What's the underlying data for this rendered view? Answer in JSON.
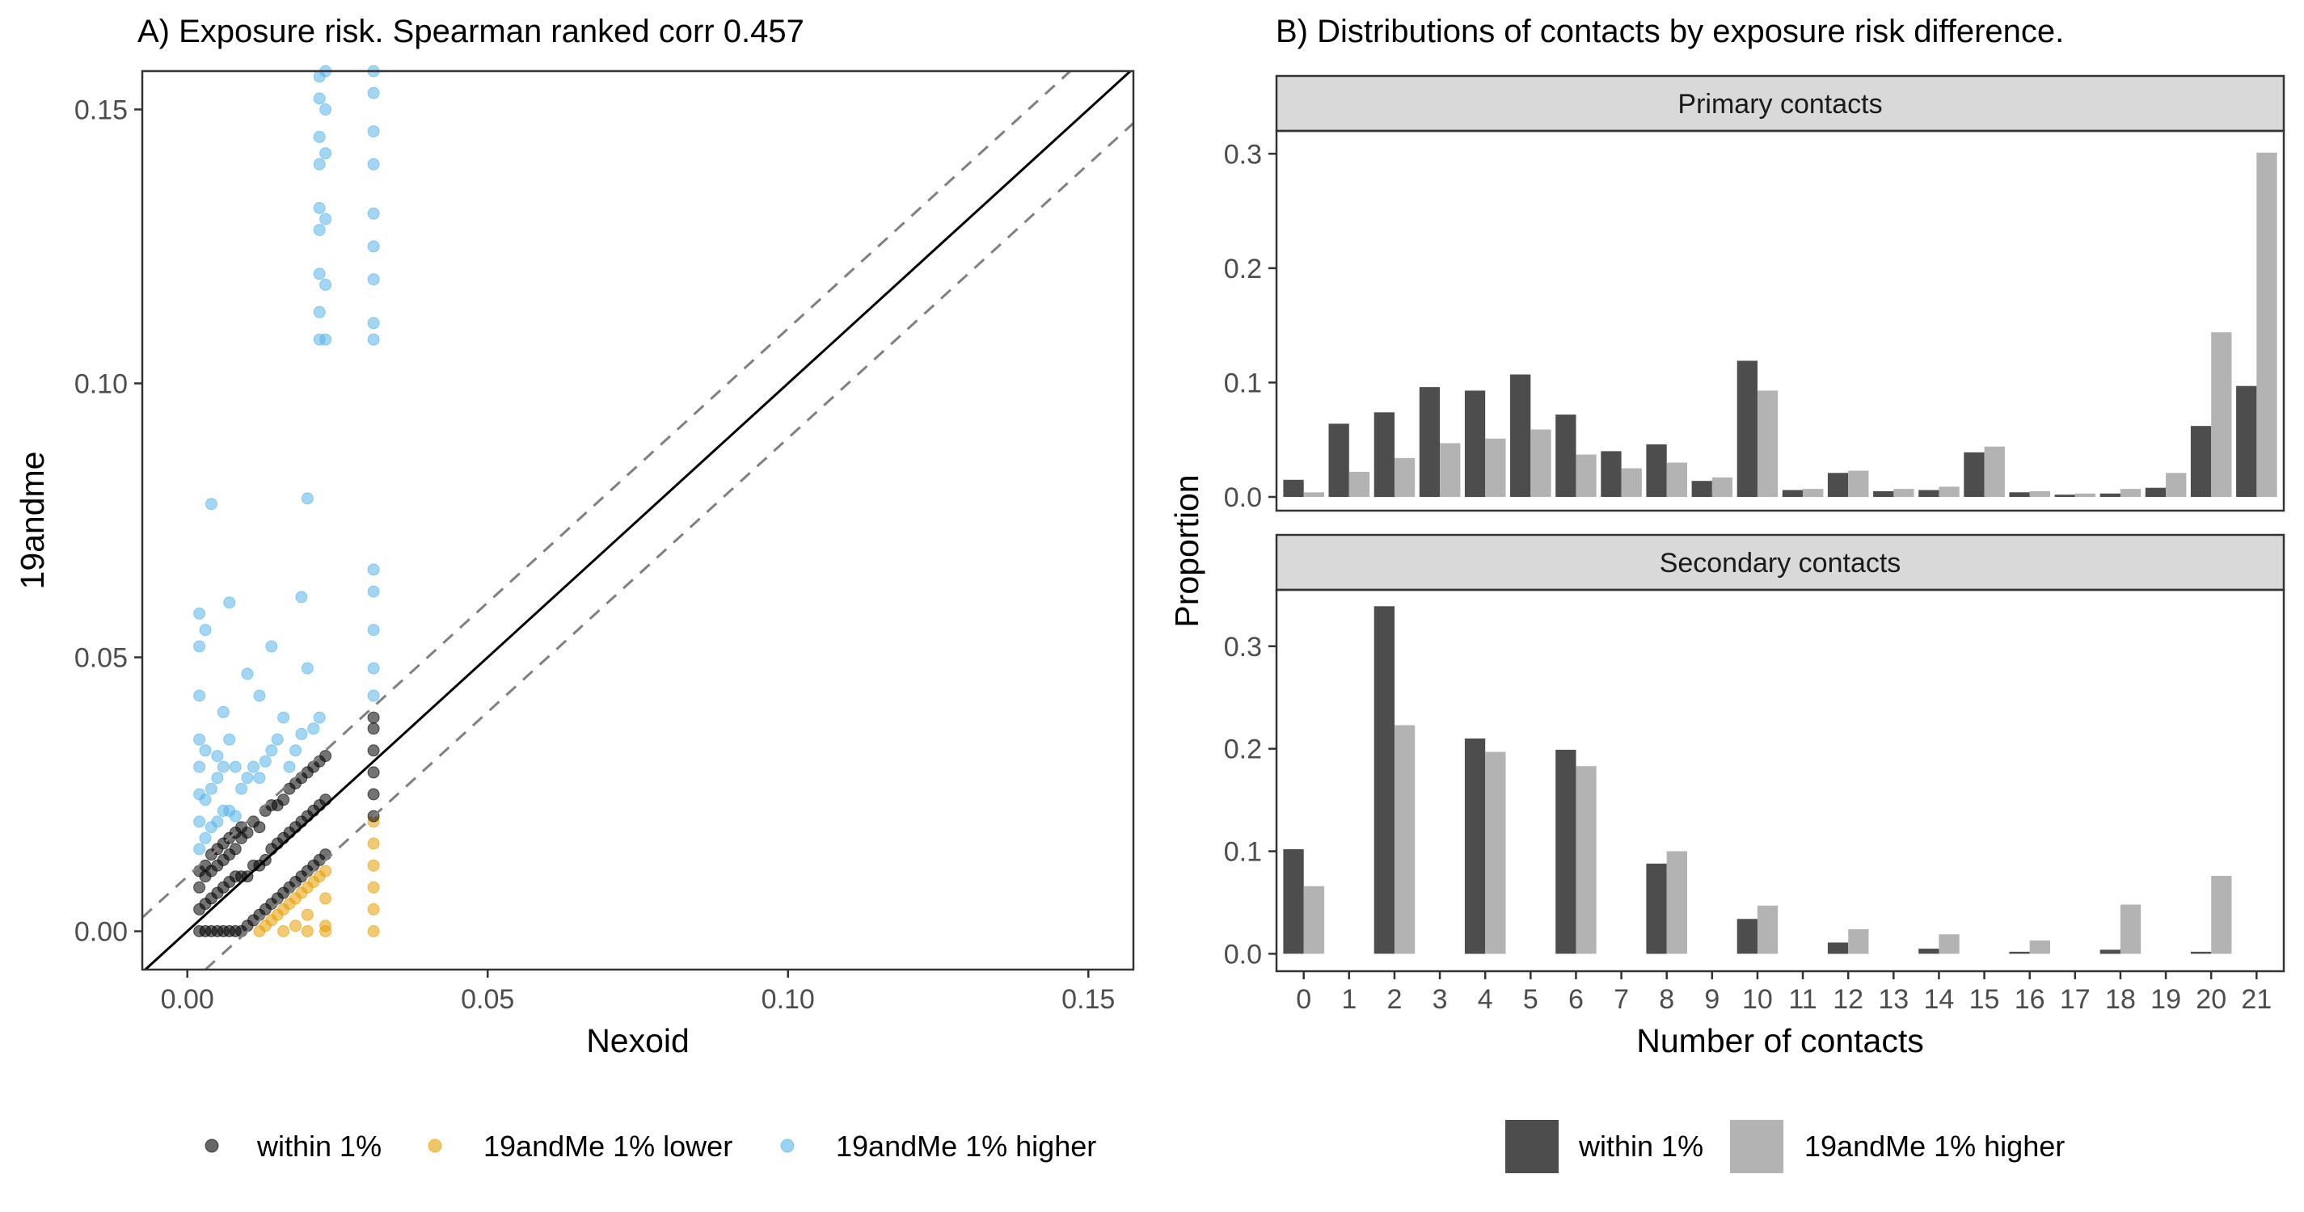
{
  "colors": {
    "within": "#000000",
    "lower": "#E69F00",
    "higher": "#56B4E9",
    "bar_within": "#4D4D4D",
    "bar_higher": "#B3B3B3",
    "strip_bg": "#D9D9D9"
  },
  "chart_data": [
    {
      "type": "scatter",
      "title": "A) Exposure risk. Spearman ranked corr 0.457",
      "xlabel": "Nexoid",
      "ylabel": "19andme",
      "xlim": [
        -0.0075,
        0.1575
      ],
      "ylim": [
        -0.007,
        0.157
      ],
      "xticks": [
        0.0,
        0.05,
        0.1,
        0.15
      ],
      "yticks": [
        0.0,
        0.05,
        0.1,
        0.15
      ],
      "xtick_labels": [
        "0.00",
        "0.05",
        "0.10",
        "0.15"
      ],
      "ytick_labels": [
        "0.00",
        "0.05",
        "0.10",
        "0.15"
      ],
      "reference_lines": [
        {
          "style": "solid",
          "slope": 1,
          "intercept": 0
        },
        {
          "style": "dashed",
          "slope": 1,
          "intercept": 0.01
        },
        {
          "style": "dashed",
          "slope": 1,
          "intercept": -0.01
        }
      ],
      "legend": {
        "position": "bottom",
        "entries": [
          "within 1%",
          "19andMe 1% lower",
          "19andMe 1% higher"
        ]
      },
      "series": [
        {
          "name": "within 1%",
          "points": [
            [
              0.002,
              0.0
            ],
            [
              0.002,
              0.004
            ],
            [
              0.002,
              0.008
            ],
            [
              0.002,
              0.011
            ],
            [
              0.003,
              0.0
            ],
            [
              0.003,
              0.005
            ],
            [
              0.003,
              0.01
            ],
            [
              0.003,
              0.012
            ],
            [
              0.004,
              0.0
            ],
            [
              0.004,
              0.006
            ],
            [
              0.004,
              0.011
            ],
            [
              0.004,
              0.014
            ],
            [
              0.005,
              0.0
            ],
            [
              0.005,
              0.007
            ],
            [
              0.005,
              0.012
            ],
            [
              0.005,
              0.015
            ],
            [
              0.006,
              0.0
            ],
            [
              0.006,
              0.008
            ],
            [
              0.006,
              0.013
            ],
            [
              0.006,
              0.016
            ],
            [
              0.007,
              0.0
            ],
            [
              0.007,
              0.009
            ],
            [
              0.007,
              0.014
            ],
            [
              0.007,
              0.017
            ],
            [
              0.008,
              0.0
            ],
            [
              0.008,
              0.01
            ],
            [
              0.008,
              0.015
            ],
            [
              0.008,
              0.018
            ],
            [
              0.009,
              0.0
            ],
            [
              0.009,
              0.01
            ],
            [
              0.009,
              0.017
            ],
            [
              0.009,
              0.019
            ],
            [
              0.01,
              0.001
            ],
            [
              0.01,
              0.01
            ],
            [
              0.01,
              0.018
            ],
            [
              0.011,
              0.002
            ],
            [
              0.011,
              0.012
            ],
            [
              0.011,
              0.02
            ],
            [
              0.012,
              0.003
            ],
            [
              0.012,
              0.012
            ],
            [
              0.012,
              0.019
            ],
            [
              0.013,
              0.004
            ],
            [
              0.013,
              0.013
            ],
            [
              0.013,
              0.022
            ],
            [
              0.014,
              0.005
            ],
            [
              0.014,
              0.015
            ],
            [
              0.014,
              0.023
            ],
            [
              0.015,
              0.006
            ],
            [
              0.015,
              0.016
            ],
            [
              0.015,
              0.023
            ],
            [
              0.016,
              0.007
            ],
            [
              0.016,
              0.017
            ],
            [
              0.016,
              0.024
            ],
            [
              0.017,
              0.008
            ],
            [
              0.017,
              0.018
            ],
            [
              0.017,
              0.026
            ],
            [
              0.018,
              0.009
            ],
            [
              0.018,
              0.019
            ],
            [
              0.018,
              0.027
            ],
            [
              0.019,
              0.01
            ],
            [
              0.019,
              0.02
            ],
            [
              0.019,
              0.028
            ],
            [
              0.02,
              0.011
            ],
            [
              0.02,
              0.021
            ],
            [
              0.02,
              0.029
            ],
            [
              0.021,
              0.012
            ],
            [
              0.021,
              0.022
            ],
            [
              0.021,
              0.03
            ],
            [
              0.022,
              0.013
            ],
            [
              0.022,
              0.023
            ],
            [
              0.022,
              0.031
            ],
            [
              0.023,
              0.014
            ],
            [
              0.023,
              0.024
            ],
            [
              0.023,
              0.032
            ],
            [
              0.031,
              0.021
            ],
            [
              0.031,
              0.025
            ],
            [
              0.031,
              0.029
            ],
            [
              0.031,
              0.033
            ],
            [
              0.031,
              0.037
            ],
            [
              0.031,
              0.039
            ]
          ]
        },
        {
          "name": "19andMe 1% lower",
          "points": [
            [
              0.012,
              0.0
            ],
            [
              0.013,
              0.001
            ],
            [
              0.014,
              0.002
            ],
            [
              0.015,
              0.003
            ],
            [
              0.016,
              0.004
            ],
            [
              0.017,
              0.005
            ],
            [
              0.018,
              0.006
            ],
            [
              0.019,
              0.007
            ],
            [
              0.02,
              0.008
            ],
            [
              0.021,
              0.009
            ],
            [
              0.022,
              0.01
            ],
            [
              0.023,
              0.011
            ],
            [
              0.023,
              0.006
            ],
            [
              0.023,
              0.001
            ],
            [
              0.02,
              0.003
            ],
            [
              0.018,
              0.001
            ],
            [
              0.016,
              0.0
            ],
            [
              0.02,
              0.0
            ],
            [
              0.023,
              0.0
            ],
            [
              0.031,
              0.0
            ],
            [
              0.031,
              0.004
            ],
            [
              0.031,
              0.008
            ],
            [
              0.031,
              0.012
            ],
            [
              0.031,
              0.016
            ],
            [
              0.031,
              0.02
            ]
          ]
        },
        {
          "name": "19andMe 1% higher",
          "points": [
            [
              0.002,
              0.015
            ],
            [
              0.002,
              0.02
            ],
            [
              0.002,
              0.025
            ],
            [
              0.002,
              0.03
            ],
            [
              0.002,
              0.035
            ],
            [
              0.002,
              0.043
            ],
            [
              0.002,
              0.052
            ],
            [
              0.002,
              0.058
            ],
            [
              0.003,
              0.017
            ],
            [
              0.003,
              0.024
            ],
            [
              0.003,
              0.033
            ],
            [
              0.003,
              0.055
            ],
            [
              0.004,
              0.078
            ],
            [
              0.004,
              0.019
            ],
            [
              0.004,
              0.026
            ],
            [
              0.005,
              0.02
            ],
            [
              0.005,
              0.028
            ],
            [
              0.005,
              0.032
            ],
            [
              0.006,
              0.022
            ],
            [
              0.006,
              0.03
            ],
            [
              0.006,
              0.04
            ],
            [
              0.007,
              0.022
            ],
            [
              0.007,
              0.035
            ],
            [
              0.007,
              0.06
            ],
            [
              0.008,
              0.021
            ],
            [
              0.008,
              0.03
            ],
            [
              0.009,
              0.026
            ],
            [
              0.01,
              0.047
            ],
            [
              0.01,
              0.028
            ],
            [
              0.011,
              0.03
            ],
            [
              0.012,
              0.043
            ],
            [
              0.012,
              0.028
            ],
            [
              0.013,
              0.031
            ],
            [
              0.014,
              0.052
            ],
            [
              0.014,
              0.033
            ],
            [
              0.015,
              0.035
            ],
            [
              0.016,
              0.039
            ],
            [
              0.017,
              0.03
            ],
            [
              0.018,
              0.033
            ],
            [
              0.019,
              0.061
            ],
            [
              0.019,
              0.036
            ],
            [
              0.02,
              0.079
            ],
            [
              0.02,
              0.048
            ],
            [
              0.021,
              0.037
            ],
            [
              0.022,
              0.039
            ],
            [
              0.022,
              0.108
            ],
            [
              0.022,
              0.113
            ],
            [
              0.022,
              0.12
            ],
            [
              0.022,
              0.128
            ],
            [
              0.022,
              0.132
            ],
            [
              0.022,
              0.14
            ],
            [
              0.022,
              0.145
            ],
            [
              0.022,
              0.152
            ],
            [
              0.022,
              0.156
            ],
            [
              0.023,
              0.108
            ],
            [
              0.023,
              0.118
            ],
            [
              0.023,
              0.13
            ],
            [
              0.023,
              0.142
            ],
            [
              0.023,
              0.15
            ],
            [
              0.023,
              0.157
            ],
            [
              0.031,
              0.043
            ],
            [
              0.031,
              0.048
            ],
            [
              0.031,
              0.055
            ],
            [
              0.031,
              0.062
            ],
            [
              0.031,
              0.066
            ],
            [
              0.031,
              0.108
            ],
            [
              0.031,
              0.111
            ],
            [
              0.031,
              0.119
            ],
            [
              0.031,
              0.125
            ],
            [
              0.031,
              0.131
            ],
            [
              0.031,
              0.14
            ],
            [
              0.031,
              0.146
            ],
            [
              0.031,
              0.153
            ],
            [
              0.031,
              0.157
            ]
          ]
        }
      ]
    },
    {
      "type": "bar",
      "title": "B) Distributions of contacts by exposure risk difference.",
      "xlabel": "Number of contacts",
      "ylabel": "Proportion",
      "categories": [
        "0",
        "1",
        "2",
        "3",
        "4",
        "5",
        "6",
        "7",
        "8",
        "9",
        "10",
        "11",
        "12",
        "13",
        "14",
        "15",
        "16",
        "17",
        "18",
        "19",
        "20",
        "21"
      ],
      "legend": {
        "position": "bottom",
        "entries": [
          "within 1%",
          "19andMe 1% higher"
        ]
      },
      "facets": [
        {
          "label": "Primary contacts",
          "ylim": [
            -0.012,
            0.32
          ],
          "yticks": [
            0.0,
            0.1,
            0.2,
            0.3
          ],
          "ytick_labels": [
            "0.0",
            "0.1",
            "0.2",
            "0.3"
          ],
          "series": [
            {
              "name": "within 1%",
              "values": [
                0.015,
                0.064,
                0.074,
                0.096,
                0.093,
                0.107,
                0.072,
                0.04,
                0.046,
                0.014,
                0.119,
                0.006,
                0.021,
                0.005,
                0.006,
                0.039,
                0.004,
                0.002,
                0.003,
                0.008,
                0.062,
                0.097
              ]
            },
            {
              "name": "19andMe 1% higher",
              "values": [
                0.004,
                0.022,
                0.034,
                0.047,
                0.051,
                0.059,
                0.037,
                0.025,
                0.03,
                0.017,
                0.093,
                0.007,
                0.023,
                0.007,
                0.009,
                0.044,
                0.005,
                0.003,
                0.007,
                0.021,
                0.144,
                0.301
              ]
            }
          ]
        },
        {
          "label": "Secondary contacts",
          "ylim": [
            -0.017,
            0.355
          ],
          "yticks": [
            0.0,
            0.1,
            0.2,
            0.3
          ],
          "ytick_labels": [
            "0.0",
            "0.1",
            "0.2",
            "0.3"
          ],
          "series": [
            {
              "name": "within 1%",
              "values": [
                0.102,
                0,
                0.339,
                0,
                0.21,
                0,
                0.199,
                0,
                0.088,
                0,
                0.034,
                0,
                0.011,
                0,
                0.005,
                0,
                0.002,
                0,
                0.004,
                0,
                0.002,
                0
              ]
            },
            {
              "name": "19andMe 1% higher",
              "values": [
                0.066,
                0,
                0.223,
                0,
                0.197,
                0,
                0.183,
                0,
                0.1,
                0,
                0.047,
                0,
                0.024,
                0,
                0.019,
                0,
                0.013,
                0,
                0.048,
                0,
                0.076,
                0
              ]
            }
          ]
        }
      ]
    }
  ]
}
